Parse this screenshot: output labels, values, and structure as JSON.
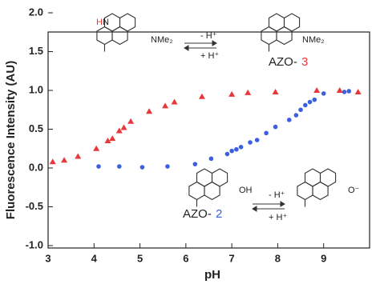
{
  "chart_data": {
    "type": "scatter",
    "x_label": "pH",
    "y_label": "Fluorescence Intensity (AU)",
    "xlim": [
      3,
      10
    ],
    "xticks": [
      3,
      4,
      5,
      6,
      7,
      8,
      9
    ],
    "ylim": [
      -1,
      2
    ],
    "yticks": [
      {
        "value": -1,
        "label": "-1.0"
      },
      {
        "value": -0.5,
        "label": "-0.5"
      },
      {
        "value": 0,
        "label": "0.0"
      },
      {
        "value": 0.5,
        "label": "0.5"
      },
      {
        "value": 1,
        "label": "1.0"
      },
      {
        "value": 1.5,
        "label": "1.5"
      },
      {
        "value": 2,
        "label": "2.0"
      }
    ],
    "series": [
      {
        "color": "#e8373a",
        "marker": "triangle",
        "x": [
          3.1,
          3.35,
          3.65,
          4.05,
          4.3,
          4.4,
          4.55,
          4.65,
          4.8,
          5.2,
          5.55,
          5.75,
          6.35,
          7.0,
          7.35,
          7.95,
          8.85,
          9.35,
          9.75
        ],
        "values": [
          0.08,
          0.1,
          0.15,
          0.25,
          0.35,
          0.38,
          0.48,
          0.52,
          0.6,
          0.73,
          0.8,
          0.85,
          0.92,
          0.95,
          0.97,
          0.98,
          1.0,
          1.0,
          0.98
        ]
      },
      {
        "color": "#3c5fe0",
        "marker": "circle",
        "x": [
          4.1,
          4.55,
          5.05,
          5.6,
          6.2,
          6.55,
          6.9,
          7.0,
          7.1,
          7.2,
          7.4,
          7.55,
          7.75,
          7.95,
          8.25,
          8.4,
          8.5,
          8.6,
          8.7,
          8.8,
          9.0,
          9.45,
          9.55
        ],
        "values": [
          0.02,
          0.02,
          0.01,
          0.02,
          0.05,
          0.12,
          0.18,
          0.22,
          0.24,
          0.27,
          0.33,
          0.36,
          0.45,
          0.53,
          0.62,
          0.68,
          0.75,
          0.81,
          0.85,
          0.88,
          0.96,
          0.98,
          0.99
        ]
      }
    ],
    "annotations": [
      "NMe₂",
      "- H⁺",
      "+ H⁺",
      "NMe₂",
      "AZO-",
      "3",
      "OH",
      "- H⁺",
      "+ H⁺",
      "O⁻",
      "AZO-",
      "2",
      "H",
      "N"
    ]
  }
}
